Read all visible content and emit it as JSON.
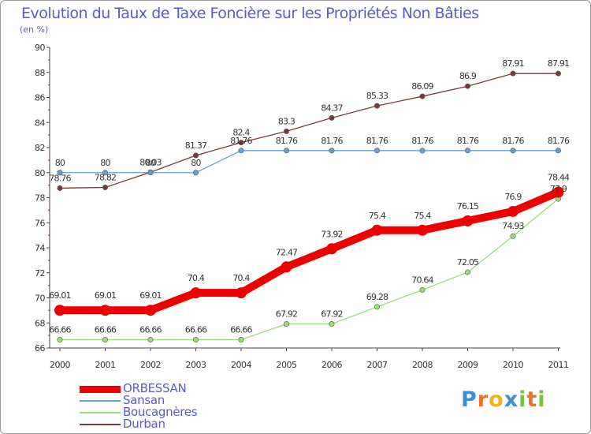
{
  "title": "Evolution du Taux de Taxe Foncière sur les Propriétés Non Bâties",
  "unit": "(en %)",
  "logo": {
    "letters": [
      "P",
      "r",
      "o",
      "x",
      "i",
      "t",
      "i"
    ],
    "colors": [
      "#3a8fd6",
      "#e8732a",
      "#f0b020",
      "#3a8fd6",
      "#7cc23a",
      "#e8732a",
      "#7cc23a"
    ]
  },
  "chart_data": {
    "type": "line",
    "title": "Evolution du Taux de Taxe Foncière sur les Propriétés Non Bâties",
    "ylabel": "(en %)",
    "xlabel": "",
    "x": [
      "2000",
      "2001",
      "2002",
      "2003",
      "2004",
      "2005",
      "2006",
      "2007",
      "2008",
      "2009",
      "2010",
      "2011"
    ],
    "ylim": [
      66,
      90
    ],
    "yticks": [
      "66",
      "68",
      "70",
      "72",
      "74",
      "76",
      "78",
      "80",
      "82",
      "84",
      "86",
      "88",
      "90"
    ],
    "grid": false,
    "legend": "bottom-left",
    "series": [
      {
        "name": "ORBESSAN",
        "color": "#ee0000",
        "values": [
          69.01,
          69.01,
          69.01,
          70.4,
          70.4,
          72.47,
          73.92,
          75.4,
          75.4,
          76.15,
          76.9,
          78.44
        ],
        "labels": [
          "69.01",
          "69.01",
          "69.01",
          "70.4",
          "70.4",
          "72.47",
          "73.92",
          "75.4",
          "75.4",
          "76.15",
          "76.9",
          "78.44"
        ]
      },
      {
        "name": "Sansan",
        "color": "#6a9fd0",
        "values": [
          80,
          80,
          80,
          80,
          81.76,
          81.76,
          81.76,
          81.76,
          81.76,
          81.76,
          81.76,
          81.76
        ],
        "labels": [
          "80",
          "80",
          "80",
          "80",
          "81.76",
          "81.76",
          "81.76",
          "81.76",
          "81.76",
          "81.76",
          "81.76",
          "81.76"
        ]
      },
      {
        "name": "Boucagnères",
        "color": "#99dd77",
        "values": [
          66.66,
          66.66,
          66.66,
          66.66,
          66.66,
          67.92,
          67.92,
          69.28,
          70.64,
          72.05,
          74.93,
          77.9
        ],
        "labels": [
          "66.66",
          "66.66",
          "66.66",
          "66.66",
          "66.66",
          "67.92",
          "67.92",
          "69.28",
          "70.64",
          "72.05",
          "74.93",
          "77.9"
        ]
      },
      {
        "name": "Durban",
        "color": "#7a3a3a",
        "values": [
          78.76,
          78.82,
          80.03,
          81.37,
          82.4,
          83.3,
          84.37,
          85.33,
          86.09,
          86.9,
          87.91,
          87.91
        ],
        "labels": [
          "78.76",
          "78.82",
          "80.03",
          "81.37",
          "82.4",
          "83.3",
          "84.37",
          "85.33",
          "86.09",
          "86.9",
          "87.91",
          "87.91"
        ]
      }
    ]
  }
}
